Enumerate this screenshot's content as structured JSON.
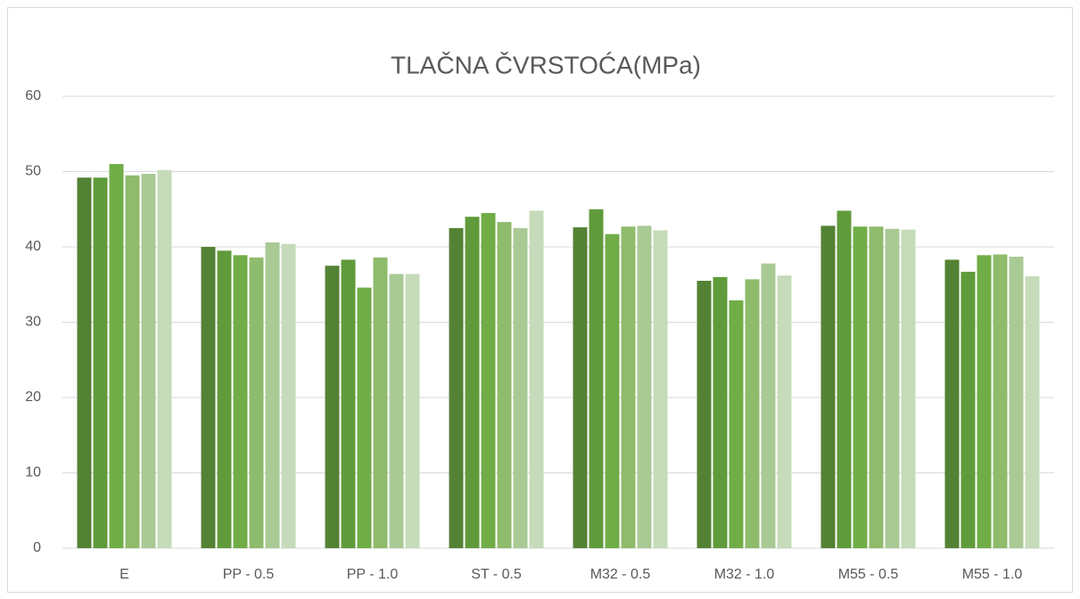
{
  "chart_data": {
    "type": "bar",
    "title": "TLAČNA ČVRSTOĆA(MPa)",
    "categories": [
      "E",
      "PP - 0.5",
      "PP - 1.0",
      "ST - 0.5",
      "M32 - 0.5",
      "M32 - 1.0",
      "M55 - 0.5",
      "M55 - 1.0"
    ],
    "series": [
      {
        "color": "#548235",
        "values": [
          49.2,
          40.0,
          37.5,
          42.5,
          42.6,
          35.5,
          42.8,
          38.3
        ]
      },
      {
        "color": "#609b3b",
        "values": [
          49.2,
          39.5,
          38.3,
          44.0,
          45.0,
          36.0,
          44.8,
          36.7
        ]
      },
      {
        "color": "#70ad47",
        "values": [
          51.0,
          38.9,
          34.6,
          44.5,
          41.7,
          32.9,
          42.7,
          38.9
        ]
      },
      {
        "color": "#8fbb6c",
        "values": [
          49.5,
          38.6,
          38.6,
          43.3,
          42.7,
          35.7,
          42.7,
          39.0
        ]
      },
      {
        "color": "#a9c995",
        "values": [
          49.7,
          40.6,
          36.4,
          42.5,
          42.8,
          37.8,
          42.4,
          38.7
        ]
      },
      {
        "color": "#c5dbb9",
        "values": [
          50.2,
          40.4,
          36.4,
          44.8,
          42.2,
          36.2,
          42.3,
          36.1
        ]
      }
    ],
    "ylim": [
      0,
      60
    ],
    "yticks": [
      0,
      10,
      20,
      30,
      40,
      50,
      60
    ],
    "grid": true
  }
}
